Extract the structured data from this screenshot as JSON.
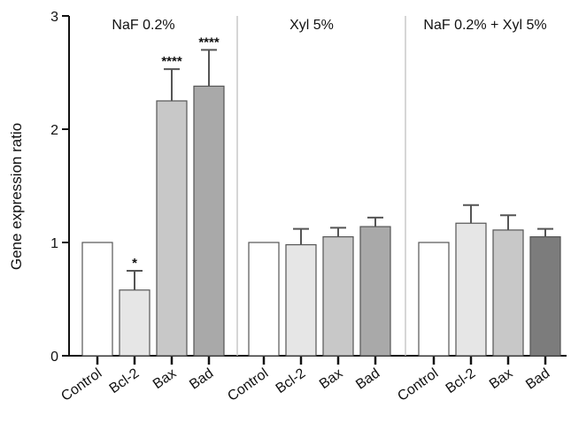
{
  "chart_data": {
    "type": "bar",
    "ylabel": "Gene expression ratio",
    "ylim": [
      0,
      3
    ],
    "yticks": [
      "0",
      "1",
      "2",
      "3"
    ],
    "grid": false,
    "groups": [
      {
        "title": "NaF 0.2%",
        "categories": [
          "Control",
          "Bcl-2",
          "Bax",
          "Bad"
        ],
        "values": [
          1.0,
          0.58,
          2.25,
          2.38
        ],
        "errors": [
          0,
          0.17,
          0.28,
          0.32
        ],
        "significance": [
          "",
          "*",
          "****",
          "****"
        ],
        "colors": [
          "#ffffff",
          "#e6e6e6",
          "#c8c8c8",
          "#a9a9a9"
        ]
      },
      {
        "title": "Xyl 5%",
        "categories": [
          "Control",
          "Bcl-2",
          "Bax",
          "Bad"
        ],
        "values": [
          1.0,
          0.98,
          1.05,
          1.14
        ],
        "errors": [
          0,
          0.14,
          0.08,
          0.08
        ],
        "significance": [
          "",
          "",
          "",
          ""
        ],
        "colors": [
          "#ffffff",
          "#e6e6e6",
          "#c8c8c8",
          "#a9a9a9"
        ]
      },
      {
        "title": "NaF 0.2% + Xyl 5%",
        "categories": [
          "Control",
          "Bcl-2",
          "Bax",
          "Bad"
        ],
        "values": [
          1.0,
          1.17,
          1.11,
          1.05
        ],
        "errors": [
          0,
          0.16,
          0.13,
          0.07
        ],
        "significance": [
          "",
          "",
          "",
          ""
        ],
        "colors": [
          "#ffffff",
          "#e6e6e6",
          "#c8c8c8",
          "#7c7c7c"
        ]
      }
    ]
  }
}
